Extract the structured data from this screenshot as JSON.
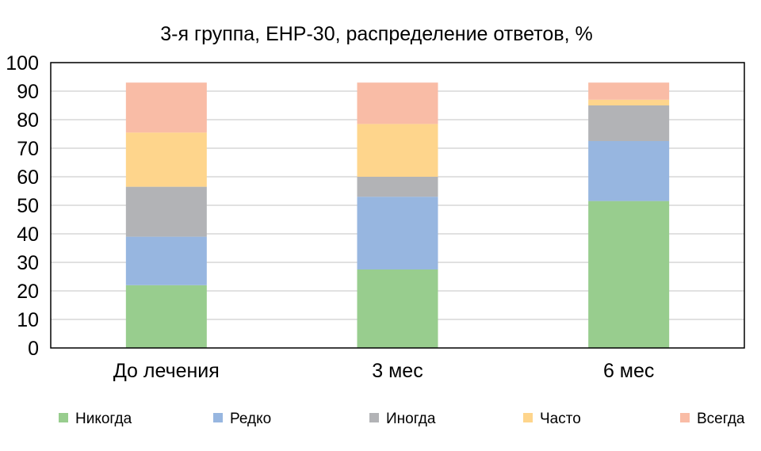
{
  "chart_data": {
    "type": "bar",
    "stacked": true,
    "title": "3-я группа, EHP-30, распределение ответов, %",
    "xlabel": "",
    "ylabel": "",
    "ylim": [
      0,
      100
    ],
    "yticks": [
      0,
      10,
      20,
      30,
      40,
      50,
      60,
      70,
      80,
      90,
      100
    ],
    "grid": true,
    "legend_position": "bottom",
    "categories": [
      "До лечения",
      "3 мес",
      "6 мес"
    ],
    "series": [
      {
        "name": "Никогда",
        "color": "#98cd8e",
        "values": [
          22,
          27.5,
          51.5
        ]
      },
      {
        "name": "Редко",
        "color": "#97b6e0",
        "values": [
          17,
          25.5,
          21
        ]
      },
      {
        "name": "Иногда",
        "color": "#b2b3b6",
        "values": [
          17.5,
          7,
          12.5
        ]
      },
      {
        "name": "Часто",
        "color": "#fed58c",
        "values": [
          19,
          18.5,
          2
        ]
      },
      {
        "name": "Всегда",
        "color": "#f9bca6",
        "values": [
          17.5,
          14.5,
          6
        ]
      }
    ]
  }
}
